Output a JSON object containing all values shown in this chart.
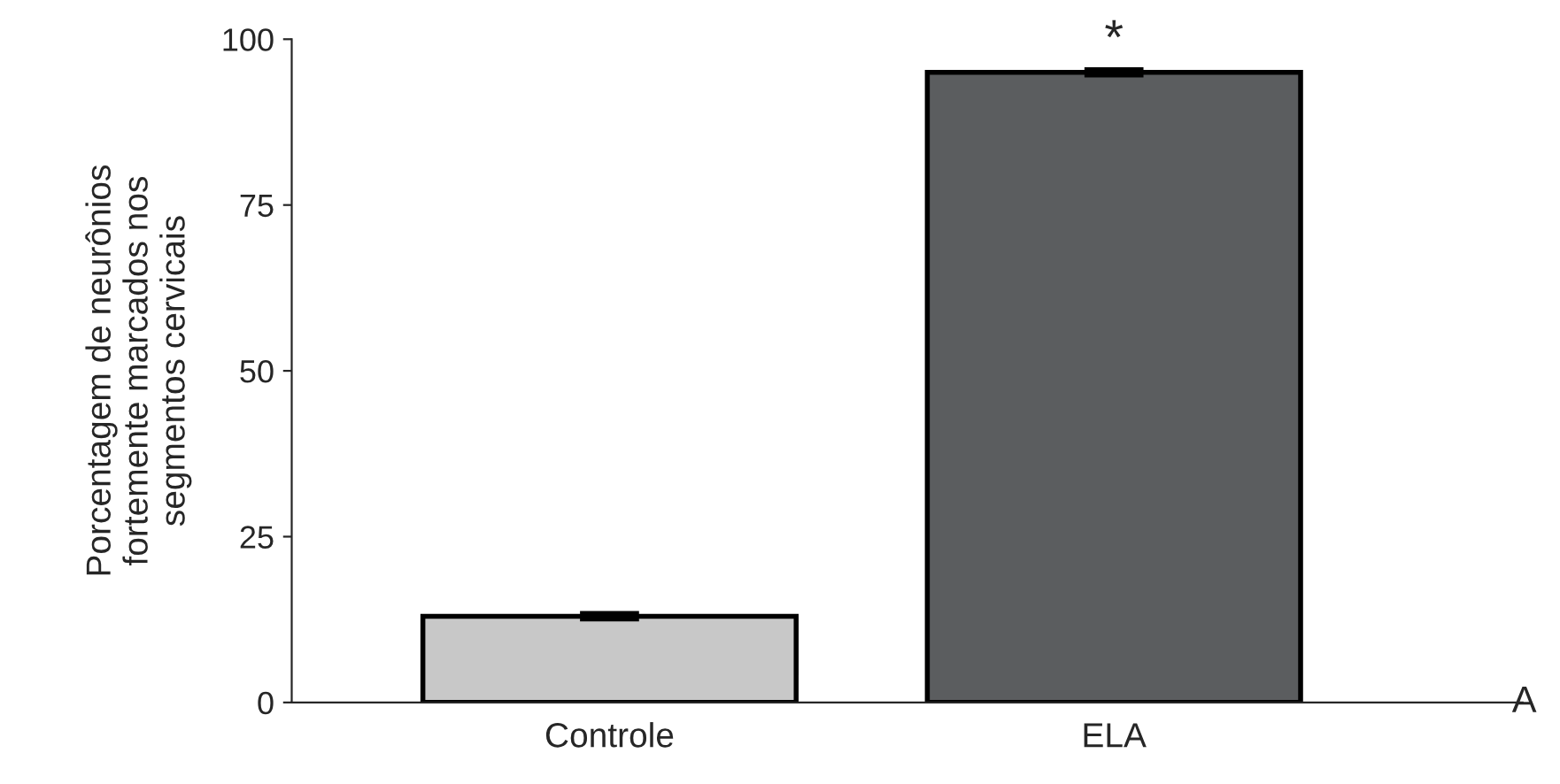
{
  "chart_data": {
    "type": "bar",
    "ylabel": "Porcentagem de neurônios\nfortemente marcados nos\nsegmentos cervicais",
    "categories": [
      "Controle",
      "ELA"
    ],
    "values": [
      13,
      95
    ],
    "errors": [
      0.5,
      0.5
    ],
    "colors": [
      "#c8c8c8",
      "#5b5d5f"
    ],
    "ylim": [
      0,
      100
    ],
    "yticks": [
      0,
      25,
      50,
      75,
      100
    ],
    "grid": false,
    "legend": false,
    "annotations": [
      {
        "text": "*",
        "x": "ELA",
        "y": 95.5
      },
      "A"
    ]
  }
}
